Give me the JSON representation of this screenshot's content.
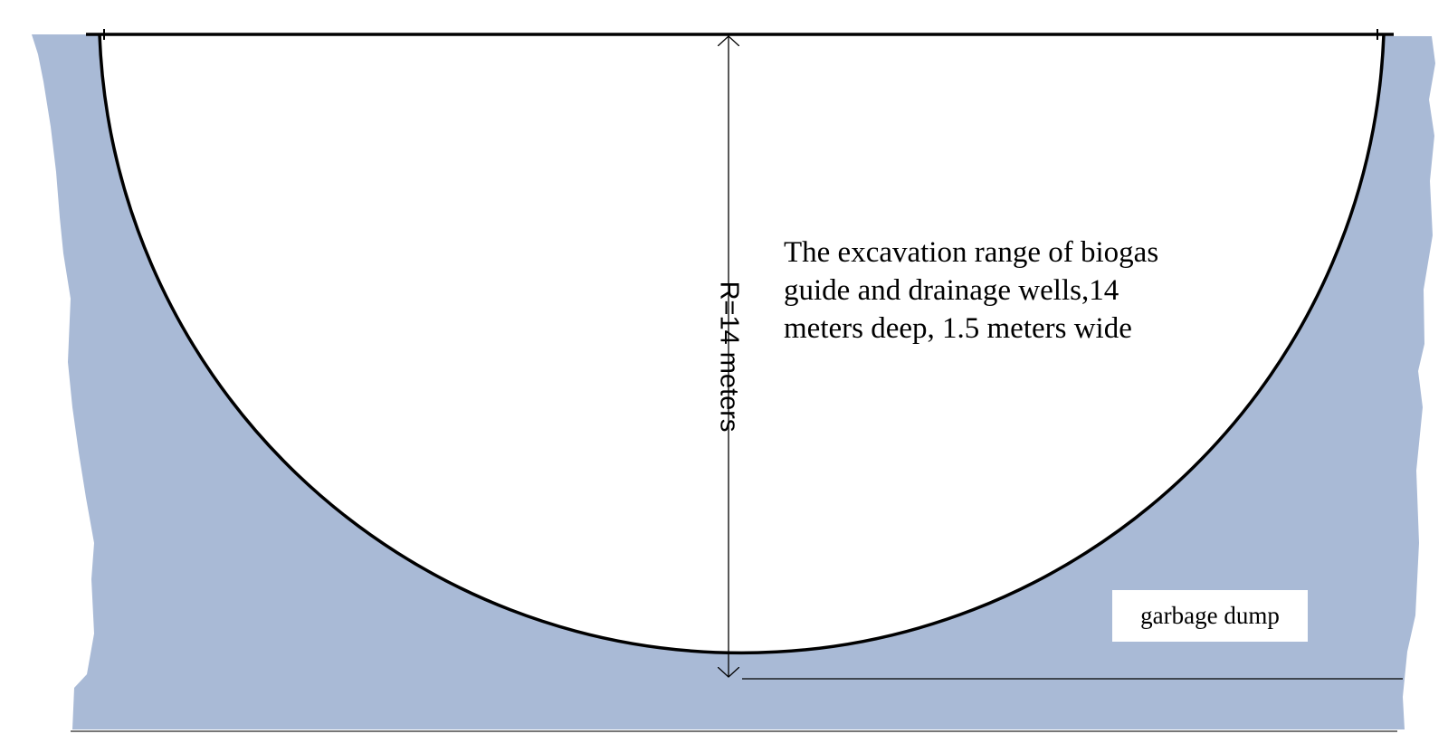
{
  "labels": {
    "excavation_lines": [
      "The excavation range of biogas",
      "guide and drainage wells,14",
      "meters deep, 1.5 meters wide"
    ],
    "radius": "R=14 meters",
    "garbage_dump": "garbage dump"
  },
  "colors": {
    "garbage_fill": "#a9bad6",
    "excavation_fill": "#ffffff",
    "outline": "#000000",
    "ground_line": "#777777"
  },
  "radius_value_meters": 14
}
